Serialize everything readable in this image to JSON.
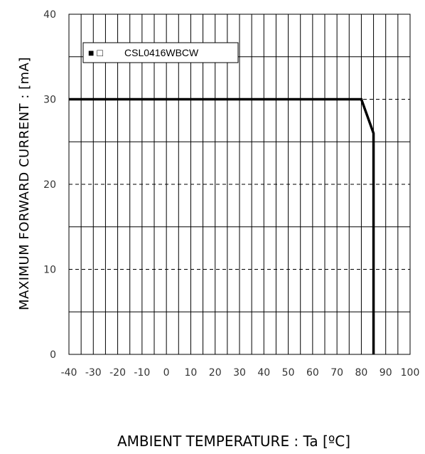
{
  "chart_data": {
    "type": "line",
    "xlabel": "AMBIENT TEMPERATURE : Ta [ºC]",
    "ylabel": "MAXIMUM FORWARD CURRENT : [mA]",
    "xlim": [
      -40,
      100
    ],
    "ylim": [
      0,
      40
    ],
    "x_ticks": [
      "-40",
      "-30",
      "-20",
      "-10",
      "0",
      "10",
      "20",
      "30",
      "40",
      "50",
      "60",
      "70",
      "80",
      "90",
      "100"
    ],
    "y_ticks": [
      "0",
      "10",
      "20",
      "30",
      "40"
    ],
    "grid": true,
    "legend_position": "top-left",
    "legend_symbols": "■ □",
    "series": [
      {
        "name": "CSL0416WBCW",
        "color": "#000000",
        "x": [
          -40,
          80,
          85,
          85
        ],
        "y": [
          30,
          30,
          26,
          0
        ]
      }
    ]
  }
}
